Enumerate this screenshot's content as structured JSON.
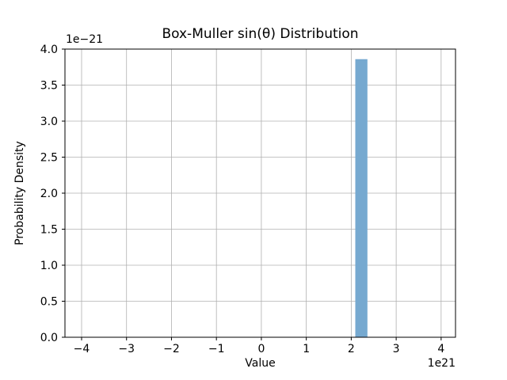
{
  "chart_data": {
    "type": "bar",
    "title": "Box-Muller sin(θ) Distribution",
    "xlabel": "Value",
    "ylabel": "Probability Density",
    "x_offset_label": "1e21",
    "y_offset_label": "1e−21",
    "x_scale_factor": "1e21",
    "y_scale_factor": "1e-21",
    "xlim": [
      -4.37,
      4.32
    ],
    "ylim": [
      0,
      4.0
    ],
    "x_ticks": [
      {
        "value": -4,
        "label": "−4"
      },
      {
        "value": -3,
        "label": "−3"
      },
      {
        "value": -2,
        "label": "−2"
      },
      {
        "value": -1,
        "label": "−1"
      },
      {
        "value": 0,
        "label": "0"
      },
      {
        "value": 1,
        "label": "1"
      },
      {
        "value": 2,
        "label": "2"
      },
      {
        "value": 3,
        "label": "3"
      },
      {
        "value": 4,
        "label": "4"
      }
    ],
    "y_ticks": [
      {
        "value": 0.0,
        "label": "0.0"
      },
      {
        "value": 0.5,
        "label": "0.5"
      },
      {
        "value": 1.0,
        "label": "1.0"
      },
      {
        "value": 1.5,
        "label": "1.5"
      },
      {
        "value": 2.0,
        "label": "2.0"
      },
      {
        "value": 2.5,
        "label": "2.5"
      },
      {
        "value": 3.0,
        "label": "3.0"
      },
      {
        "value": 3.5,
        "label": "3.5"
      },
      {
        "value": 4.0,
        "label": "4.0"
      }
    ],
    "bars": [
      {
        "x_start": 2.09,
        "x_end": 2.36,
        "height": 3.86
      }
    ],
    "grid": true,
    "legend": "none",
    "colors": {
      "bar_fill": "#76A9D0",
      "grid_line": "#b0b0b0",
      "spine": "#000000",
      "background": "#ffffff"
    }
  }
}
